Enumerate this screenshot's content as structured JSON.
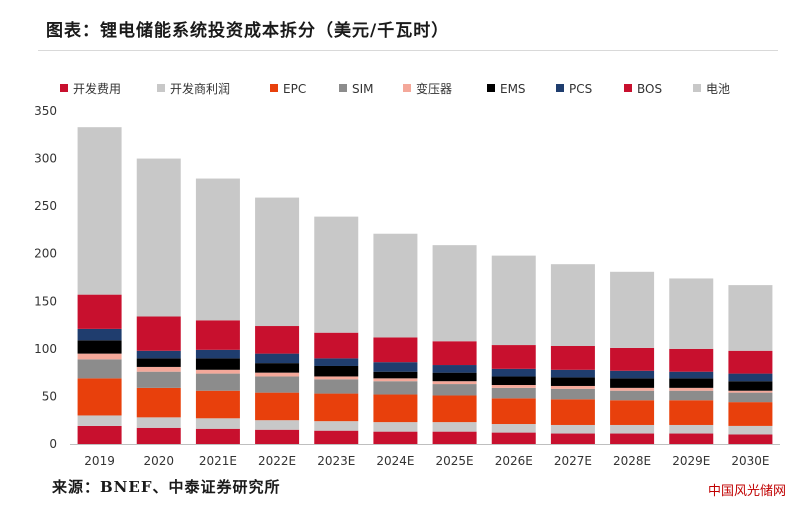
{
  "header": {
    "title": "图表：锂电储能系统投资成本拆分（美元/千瓦时）"
  },
  "footer": {
    "source": "来源：BNEF、中泰证券研究所",
    "watermark": "中国风光储网"
  },
  "chart_data": {
    "type": "bar",
    "stacked": true,
    "categories": [
      "2019",
      "2020",
      "2021E",
      "2022E",
      "2023E",
      "2024E",
      "2025E",
      "2026E",
      "2027E",
      "2028E",
      "2029E",
      "2030E"
    ],
    "ylim": [
      0,
      350
    ],
    "yticks": [
      0,
      50,
      100,
      150,
      200,
      250,
      300,
      350
    ],
    "grid": false,
    "legend_position": "top",
    "series": [
      {
        "name": "开发费用",
        "color": "#c8102e",
        "values": [
          19,
          17,
          16,
          15,
          14,
          13,
          13,
          12,
          11,
          11,
          11,
          10
        ]
      },
      {
        "name": "开发商利润",
        "color": "#c8c8c8",
        "values": [
          11,
          11,
          11,
          10,
          10,
          10,
          10,
          9,
          9,
          9,
          9,
          9
        ]
      },
      {
        "name": "EPC",
        "color": "#e8400c",
        "values": [
          39,
          31,
          29,
          29,
          29,
          29,
          28,
          27,
          27,
          26,
          26,
          25
        ]
      },
      {
        "name": "SIM",
        "color": "#8c8c8c",
        "values": [
          20,
          17,
          18,
          17,
          15,
          14,
          12,
          11,
          11,
          10,
          10,
          10
        ]
      },
      {
        "name": "变压器",
        "color": "#f4a89a",
        "values": [
          6,
          5,
          4,
          4,
          3,
          3,
          3,
          3,
          3,
          3,
          3,
          2
        ]
      },
      {
        "name": "EMS",
        "color": "#000000",
        "values": [
          14,
          9,
          12,
          10,
          11,
          7,
          9,
          9,
          9,
          10,
          10,
          10
        ]
      },
      {
        "name": "PCS",
        "color": "#1f3d6e",
        "values": [
          12,
          8,
          9,
          10,
          8,
          10,
          8,
          8,
          8,
          8,
          7,
          8
        ]
      },
      {
        "name": "BOS",
        "color": "#c8102e",
        "values": [
          36,
          36,
          31,
          29,
          27,
          26,
          25,
          25,
          25,
          24,
          24,
          24
        ]
      },
      {
        "name": "电池",
        "color": "#c8c8c8",
        "values": [
          176,
          166,
          149,
          135,
          122,
          109,
          101,
          94,
          86,
          80,
          74,
          69
        ]
      }
    ]
  }
}
